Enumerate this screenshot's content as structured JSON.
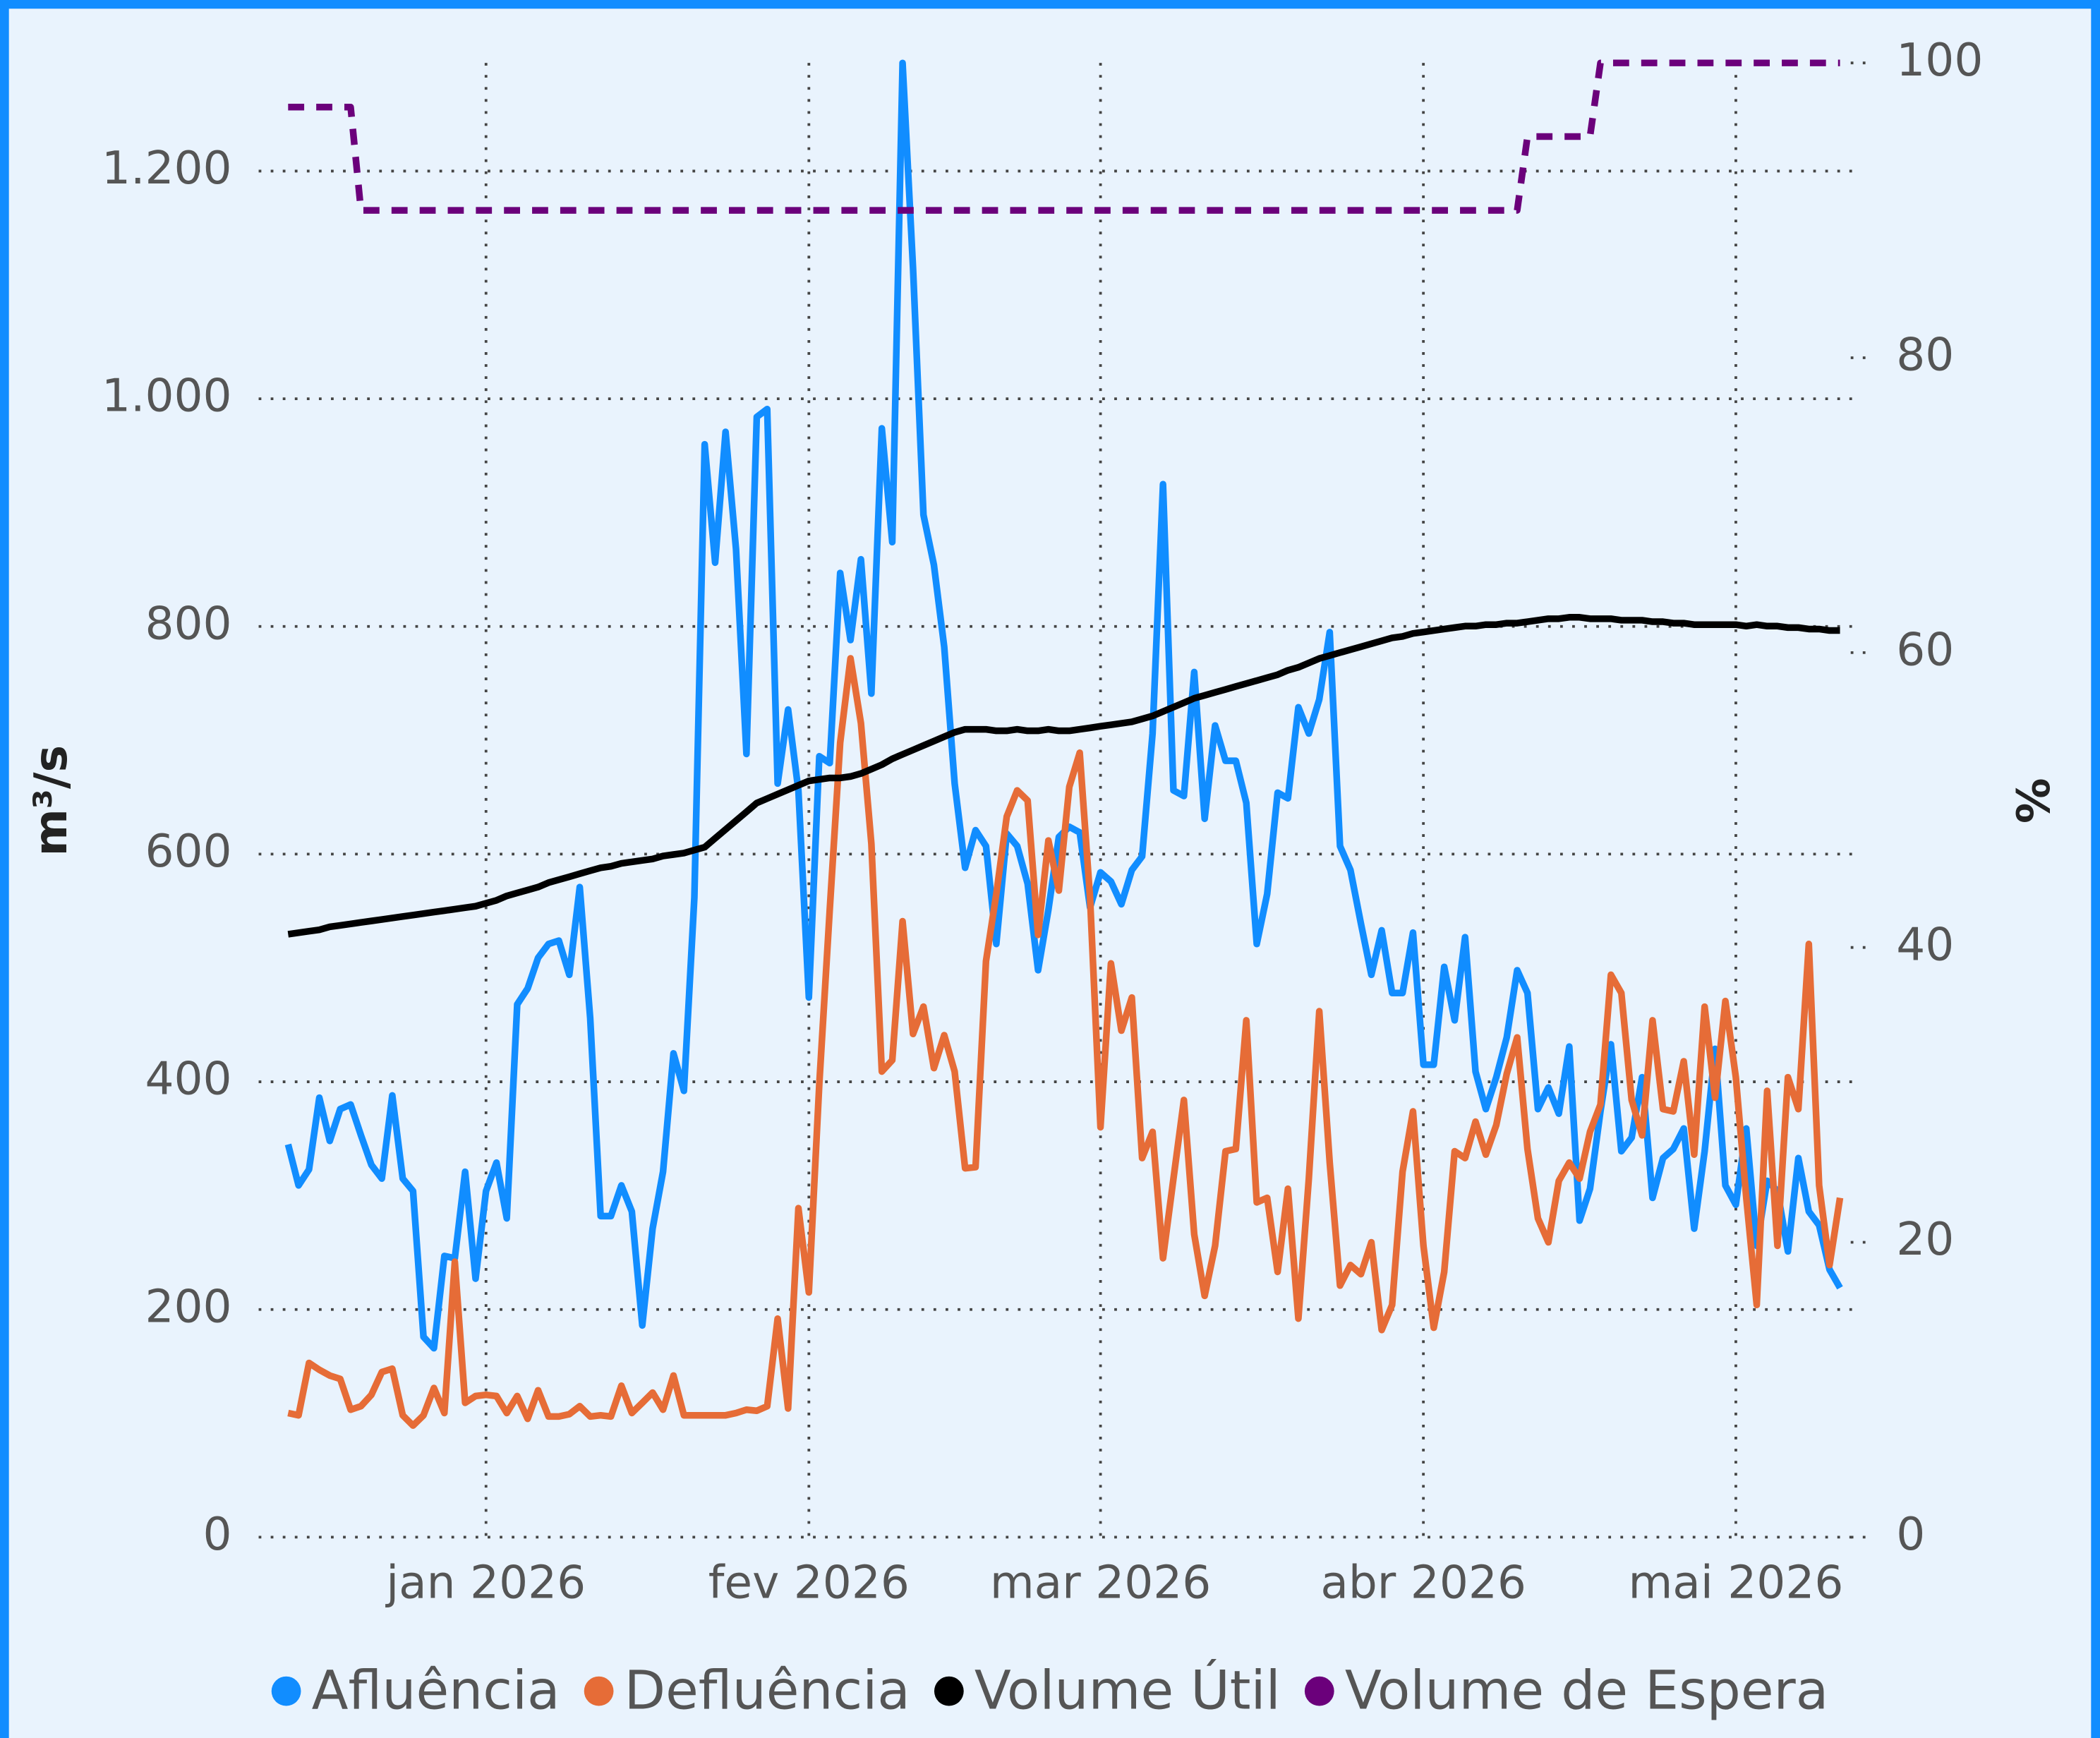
{
  "chart_data": {
    "type": "line",
    "y_label": "m³/s",
    "y2_label": "%",
    "categories": [
      null,
      null,
      null,
      null,
      null,
      null,
      null,
      null,
      null,
      null,
      null,
      null,
      null,
      null,
      null,
      null,
      null,
      null,
      null,
      "jan 2026",
      null,
      null,
      null,
      null,
      null,
      null,
      null,
      null,
      null,
      null,
      null,
      null,
      null,
      null,
      null,
      null,
      null,
      null,
      null,
      null,
      null,
      null,
      null,
      null,
      null,
      null,
      null,
      null,
      null,
      null,
      "fev 2026",
      null,
      null,
      null,
      null,
      null,
      null,
      null,
      null,
      null,
      null,
      null,
      null,
      null,
      null,
      null,
      null,
      null,
      null,
      null,
      null,
      null,
      null,
      null,
      null,
      null,
      null,
      null,
      "mar 2026",
      null,
      null,
      null,
      null,
      null,
      null,
      null,
      null,
      null,
      null,
      null,
      null,
      null,
      null,
      null,
      null,
      null,
      null,
      null,
      null,
      null,
      null,
      null,
      null,
      null,
      null,
      null,
      null,
      null,
      null,
      "abr 2026",
      null,
      null,
      null,
      null,
      null,
      null,
      null,
      null,
      null,
      null,
      null,
      null,
      null,
      null,
      null,
      null,
      null,
      null,
      null,
      null,
      null,
      null,
      null,
      null,
      null,
      null,
      null,
      null,
      null,
      "mai 2026",
      null,
      null,
      null,
      null,
      null,
      null,
      null,
      null,
      null,
      null
    ],
    "ylim": [
      0,
      1295
    ],
    "yticks": [
      0,
      200,
      400,
      600,
      800,
      {
        "value": 1000,
        "label": "1.000"
      },
      {
        "value": 1200,
        "label": "1.200"
      }
    ],
    "y2lim": [
      0,
      100
    ],
    "y2ticks": [
      0,
      20,
      40,
      60,
      80,
      100
    ],
    "grid": true,
    "legend": "bottom",
    "series": [
      {
        "name": "Afluência",
        "color": "#118DFF",
        "values": [
          345,
          309,
          323,
          386,
          348,
          376,
          380,
          353,
          327,
          315,
          388,
          315,
          304,
          176,
          166,
          247,
          245,
          321,
          227,
          304,
          329,
          280,
          468,
          482,
          509,
          521,
          524,
          494,
          571,
          456,
          282,
          282,
          309,
          286,
          186,
          271,
          321,
          425,
          392,
          562,
          960,
          856,
          971,
          868,
          688,
          984,
          991,
          662,
          727,
          656,
          474,
          686,
          680,
          847,
          788,
          859,
          741,
          974,
          874,
          1295,
          1115,
          898,
          854,
          782,
          662,
          588,
          621,
          607,
          521,
          618,
          607,
          574,
          498,
          551,
          615,
          624,
          619,
          553,
          584,
          576,
          556,
          586,
          598,
          706,
          925,
          656,
          651,
          760,
          631,
          713,
          682,
          682,
          645,
          521,
          565,
          654,
          649,
          729,
          706,
          736,
          795,
          607,
          586,
          539,
          494,
          533,
          478,
          478,
          531,
          415,
          415,
          501,
          454,
          527,
          409,
          376,
          404,
          439,
          498,
          478,
          376,
          395,
          372,
          431,
          278,
          306,
          374,
          433,
          339,
          351,
          404,
          298,
          333,
          341,
          359,
          271,
          339,
          429,
          309,
          292,
          359,
          256,
          313,
          304,
          251,
          333,
          286,
          274,
          235,
          219
        ]
      },
      {
        "name": "Defluência",
        "color": "#E66C37",
        "values": [
          109,
          107,
          153,
          147,
          142,
          139,
          112,
          115,
          125,
          145,
          148,
          107,
          98,
          107,
          131,
          109,
          242,
          118,
          124,
          125,
          124,
          109,
          124,
          104,
          129,
          106,
          106,
          108,
          115,
          106,
          107,
          106,
          133,
          109,
          118,
          127,
          112,
          142,
          107,
          107,
          107,
          107,
          107,
          109,
          112,
          111,
          115,
          192,
          113,
          289,
          215,
          398,
          551,
          698,
          772,
          715,
          609,
          409,
          419,
          541,
          442,
          466,
          412,
          441,
          409,
          324,
          325,
          506,
          565,
          633,
          656,
          647,
          529,
          612,
          568,
          659,
          689,
          562,
          360,
          504,
          445,
          474,
          333,
          356,
          245,
          315,
          384,
          266,
          212,
          256,
          339,
          341,
          454,
          294,
          298,
          233,
          306,
          192,
          315,
          462,
          329,
          221,
          239,
          231,
          259,
          182,
          204,
          321,
          374,
          256,
          184,
          233,
          339,
          333,
          365,
          336,
          362,
          407,
          439,
          341,
          280,
          259,
          313,
          329,
          315,
          356,
          380,
          494,
          478,
          384,
          353,
          454,
          376,
          374,
          418,
          336,
          466,
          386,
          471,
          404,
          298,
          204,
          392,
          256,
          404,
          376,
          521,
          309,
          239,
          298
        ]
      },
      {
        "name": "Volume Útil",
        "color": "#000000",
        "axis": "y2",
        "values": [
          40.9,
          41.0,
          41.1,
          41.2,
          41.4,
          41.5,
          41.6,
          41.7,
          41.8,
          41.9,
          42.0,
          42.1,
          42.2,
          42.3,
          42.4,
          42.5,
          42.6,
          42.7,
          42.8,
          43.0,
          43.2,
          43.5,
          43.7,
          43.9,
          44.1,
          44.4,
          44.6,
          44.8,
          45.0,
          45.2,
          45.4,
          45.5,
          45.7,
          45.8,
          45.9,
          46.0,
          46.2,
          46.3,
          46.4,
          46.6,
          46.8,
          47.4,
          48.0,
          48.6,
          49.2,
          49.8,
          50.1,
          50.4,
          50.7,
          51.0,
          51.3,
          51.4,
          51.5,
          51.5,
          51.6,
          51.8,
          52.1,
          52.4,
          52.8,
          53.1,
          53.4,
          53.7,
          54.0,
          54.3,
          54.6,
          54.8,
          54.8,
          54.8,
          54.7,
          54.7,
          54.8,
          54.7,
          54.7,
          54.8,
          54.7,
          54.7,
          54.8,
          54.9,
          55.0,
          55.1,
          55.2,
          55.3,
          55.5,
          55.7,
          56.0,
          56.3,
          56.6,
          56.9,
          57.1,
          57.3,
          57.5,
          57.7,
          57.9,
          58.1,
          58.3,
          58.5,
          58.8,
          59.0,
          59.3,
          59.6,
          59.8,
          60.0,
          60.2,
          60.4,
          60.6,
          60.8,
          61.0,
          61.1,
          61.3,
          61.4,
          61.5,
          61.6,
          61.7,
          61.8,
          61.8,
          61.9,
          61.9,
          62.0,
          62.0,
          62.1,
          62.2,
          62.3,
          62.3,
          62.4,
          62.4,
          62.3,
          62.3,
          62.3,
          62.2,
          62.2,
          62.2,
          62.1,
          62.1,
          62.0,
          62.0,
          61.9,
          61.9,
          61.9,
          61.9,
          61.9,
          61.8,
          61.9,
          61.8,
          61.8,
          61.7,
          61.7,
          61.6,
          61.6,
          61.5,
          61.5
        ]
      },
      {
        "name": "Volume de Espera",
        "color": "#6B007B",
        "axis": "y2",
        "dashed": true,
        "values": [
          97,
          97,
          97,
          97,
          97,
          97,
          97,
          90,
          90,
          90,
          90,
          90,
          90,
          90,
          90,
          90,
          90,
          90,
          90,
          90,
          90,
          90,
          90,
          90,
          90,
          90,
          90,
          90,
          90,
          90,
          90,
          90,
          90,
          90,
          90,
          90,
          90,
          90,
          90,
          90,
          90,
          90,
          90,
          90,
          90,
          90,
          90,
          90,
          90,
          90,
          90,
          90,
          90,
          90,
          90,
          90,
          90,
          90,
          90,
          90,
          90,
          90,
          90,
          90,
          90,
          90,
          90,
          90,
          90,
          90,
          90,
          90,
          90,
          90,
          90,
          90,
          90,
          90,
          90,
          90,
          90,
          90,
          90,
          90,
          90,
          90,
          90,
          90,
          90,
          90,
          90,
          90,
          90,
          90,
          90,
          90,
          90,
          90,
          90,
          90,
          90,
          90,
          90,
          90,
          90,
          90,
          90,
          90,
          90,
          90,
          90,
          90,
          90,
          90,
          90,
          90,
          90,
          90,
          90,
          95,
          95,
          95,
          95,
          95,
          95,
          95,
          100,
          100,
          100,
          100,
          100,
          100,
          100,
          100,
          100,
          100,
          100,
          100,
          100,
          100,
          100,
          100,
          100,
          100,
          100,
          100,
          100,
          100,
          100,
          100
        ]
      }
    ]
  }
}
